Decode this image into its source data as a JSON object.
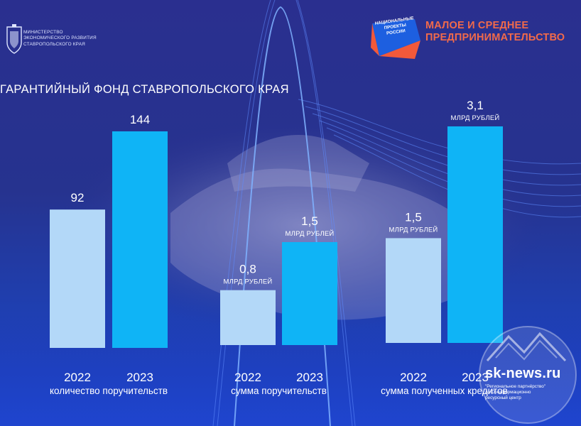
{
  "header": {
    "ministry_lines": [
      "МИНИСТЕРСТВО",
      "ЭКОНОМИЧЕСКОГО РАЗВИТИЯ",
      "СТАВРОПОЛЬСКОГО КРАЯ"
    ],
    "national_projects_lines": [
      "НАЦИОНАЛЬНЫЕ",
      "ПРОЕКТЫ",
      "РОССИИ"
    ],
    "program_title_lines": [
      "МАЛОЕ И СРЕДНЕЕ",
      "ПРЕДПРИНИМАТЕЛЬСТВО"
    ]
  },
  "chart_data": {
    "type": "bar",
    "title": "ГАРАНТИЙНЫЙ ФОНД СТАВРОПОЛЬСКОГО КРАЯ",
    "groups": [
      {
        "label": "количество поручительств",
        "unit": "",
        "bars": [
          {
            "year": "2022",
            "value": 92,
            "value_label": "92"
          },
          {
            "year": "2023",
            "value": 144,
            "value_label": "144"
          }
        ]
      },
      {
        "label": "сумма поручительств",
        "unit": "МЛРД РУБЛЕЙ",
        "bars": [
          {
            "year": "2022",
            "value": 0.8,
            "value_label": "0,8"
          },
          {
            "year": "2023",
            "value": 1.5,
            "value_label": "1,5"
          }
        ]
      },
      {
        "label": "сумма полученных кредитов",
        "unit": "МЛРД РУБЛЕЙ",
        "bars": [
          {
            "year": "2022",
            "value": 1.5,
            "value_label": "1,5"
          },
          {
            "year": "2023",
            "value": 3.1,
            "value_label": "3,1"
          }
        ]
      }
    ],
    "colors": {
      "2022": "#b3d8f8",
      "2023": "#0fb4f6"
    }
  },
  "watermark": {
    "site": "sk-news.ru",
    "sub_lines": [
      "\"Региональное партнёрство\"",
      "АНО информационно",
      "ресурсный центр"
    ]
  }
}
